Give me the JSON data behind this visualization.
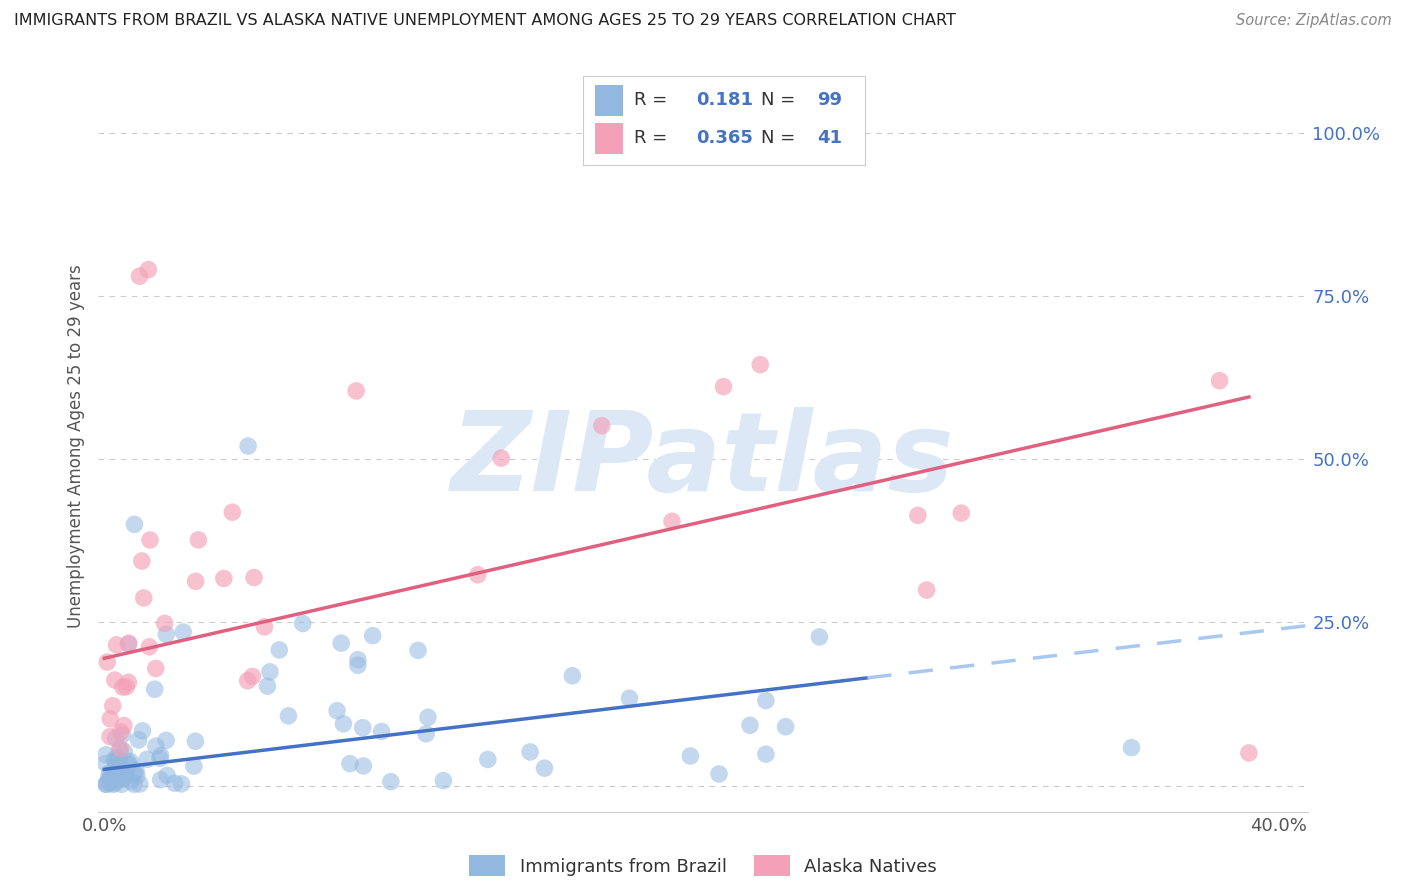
{
  "title": "IMMIGRANTS FROM BRAZIL VS ALASKA NATIVE UNEMPLOYMENT AMONG AGES 25 TO 29 YEARS CORRELATION CHART",
  "source": "Source: ZipAtlas.com",
  "ylabel": "Unemployment Among Ages 25 to 29 years",
  "x_tick_labels": [
    "0.0%",
    "",
    "",
    "",
    "40.0%"
  ],
  "x_tick_vals": [
    0.0,
    0.1,
    0.2,
    0.3,
    0.4
  ],
  "y_tick_labels_right": [
    "100.0%",
    "75.0%",
    "50.0%",
    "25.0%"
  ],
  "y_tick_vals_right": [
    1.0,
    0.75,
    0.5,
    0.25
  ],
  "xlim": [
    -0.002,
    0.41
  ],
  "ylim": [
    -0.04,
    1.08
  ],
  "background_color": "#ffffff",
  "grid_color": "#cccccc",
  "title_color": "#333333",
  "right_axis_color": "#4472c4",
  "legend_label_color": "#333333",
  "legend_value_color": "#4472c4",
  "color_blue": "#92b8e0",
  "color_pink": "#f4a0b8",
  "color_trendline_blue": "#4472c4",
  "color_trendline_pink": "#e06080",
  "color_dashed": "#a8c8f0",
  "watermark_text": "ZIPatlas",
  "watermark_color": "#dce8f5",
  "trendline_blue_x0": 0.0,
  "trendline_blue_x1": 0.26,
  "trendline_blue_y0": 0.025,
  "trendline_blue_y1": 0.165,
  "trendline_blue_dashed_x0": 0.26,
  "trendline_blue_dashed_x1": 0.41,
  "trendline_blue_dashed_y0": 0.165,
  "trendline_blue_dashed_y1": 0.245,
  "trendline_pink_x0": 0.0,
  "trendline_pink_x1": 0.39,
  "trendline_pink_y0": 0.195,
  "trendline_pink_y1": 0.595
}
